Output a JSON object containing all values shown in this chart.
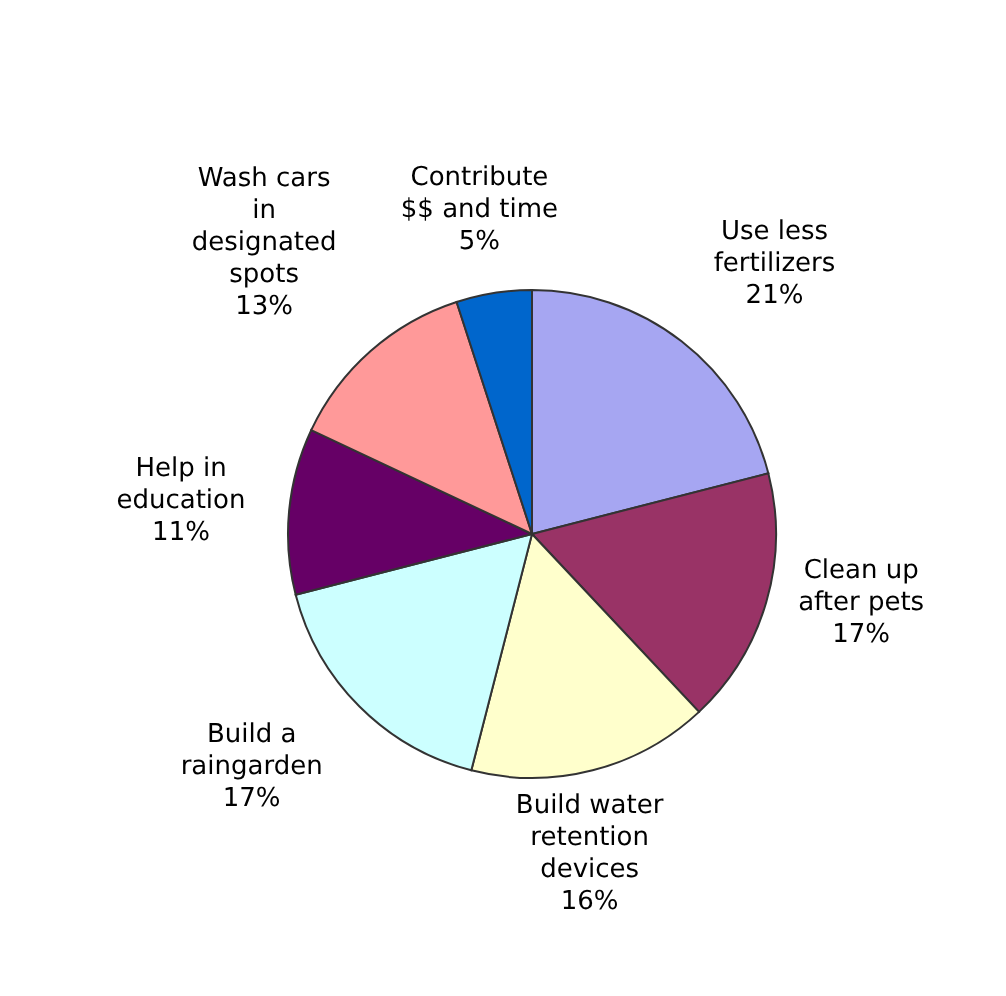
{
  "chart_data": {
    "type": "pie",
    "categories": [
      "Use less fertilizers",
      "Clean up after pets",
      "Build water retention devices",
      "Build a raingarden",
      "Help in education",
      "Wash cars in designated spots",
      "Contribute $$ and time"
    ],
    "values": [
      21,
      17,
      16,
      17,
      11,
      13,
      5
    ],
    "value_labels": [
      "21%",
      "17%",
      "16%",
      "17%",
      "11%",
      "13%",
      "5%"
    ],
    "colors": [
      "#a6a6f2",
      "#993366",
      "#ffffcc",
      "#ccffff",
      "#660066",
      "#ff9999",
      "#0066cc"
    ]
  }
}
